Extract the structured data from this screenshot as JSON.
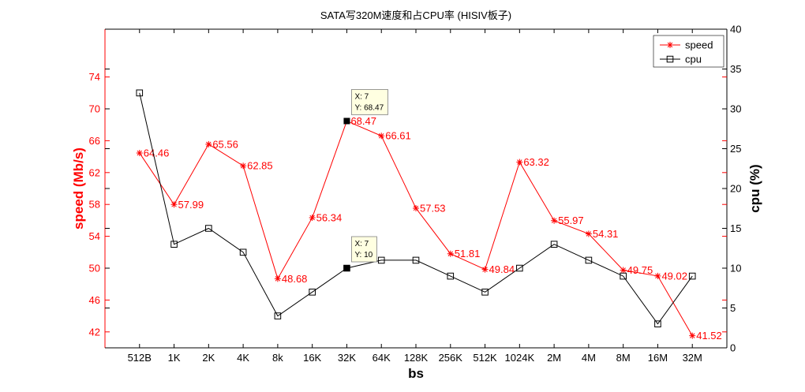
{
  "chart_data": {
    "type": "line",
    "title": "SATA写320M速度和占CPU率 (HISIV板子)",
    "xlabel": "bs",
    "ylabel": "speed (Mb/s)",
    "ylabel_right": "cpu (%)",
    "categories": [
      "512B",
      "1K",
      "2K",
      "4K",
      "8k",
      "16K",
      "32K",
      "64K",
      "128K",
      "256K",
      "512K",
      "1024K",
      "2M",
      "4M",
      "8M",
      "16M",
      "32M"
    ],
    "xlim": [
      0,
      18
    ],
    "ylim": [
      40,
      80
    ],
    "yticks": [
      42,
      46,
      50,
      54,
      58,
      62,
      66,
      70,
      74
    ],
    "ylim_right": [
      0,
      40
    ],
    "yticks_right": [
      0,
      5,
      10,
      15,
      20,
      25,
      30,
      35,
      40
    ],
    "grid": false,
    "legend_position": "top-right",
    "series": [
      {
        "name": "speed",
        "axis": "left",
        "color": "#ff0000",
        "marker": "asterisk",
        "show_value_labels": true,
        "values": [
          64.46,
          57.99,
          65.56,
          62.85,
          48.68,
          56.34,
          68.47,
          66.61,
          57.53,
          51.81,
          49.84,
          63.32,
          55.97,
          54.31,
          49.75,
          49.02,
          41.52
        ]
      },
      {
        "name": "cpu",
        "axis": "right",
        "color": "#000000",
        "marker": "square",
        "show_value_labels": false,
        "values": [
          32,
          13,
          15,
          12,
          4,
          7,
          10,
          11,
          11,
          9,
          7,
          10,
          13,
          11,
          9,
          3,
          9
        ]
      }
    ],
    "datatips": [
      {
        "series": 0,
        "x": 7,
        "y": 68.47,
        "lines": [
          "X: 7",
          "Y: 68.47"
        ]
      },
      {
        "series": 1,
        "x": 7,
        "y": 10,
        "lines": [
          "X: 7",
          "Y: 10"
        ]
      }
    ]
  }
}
